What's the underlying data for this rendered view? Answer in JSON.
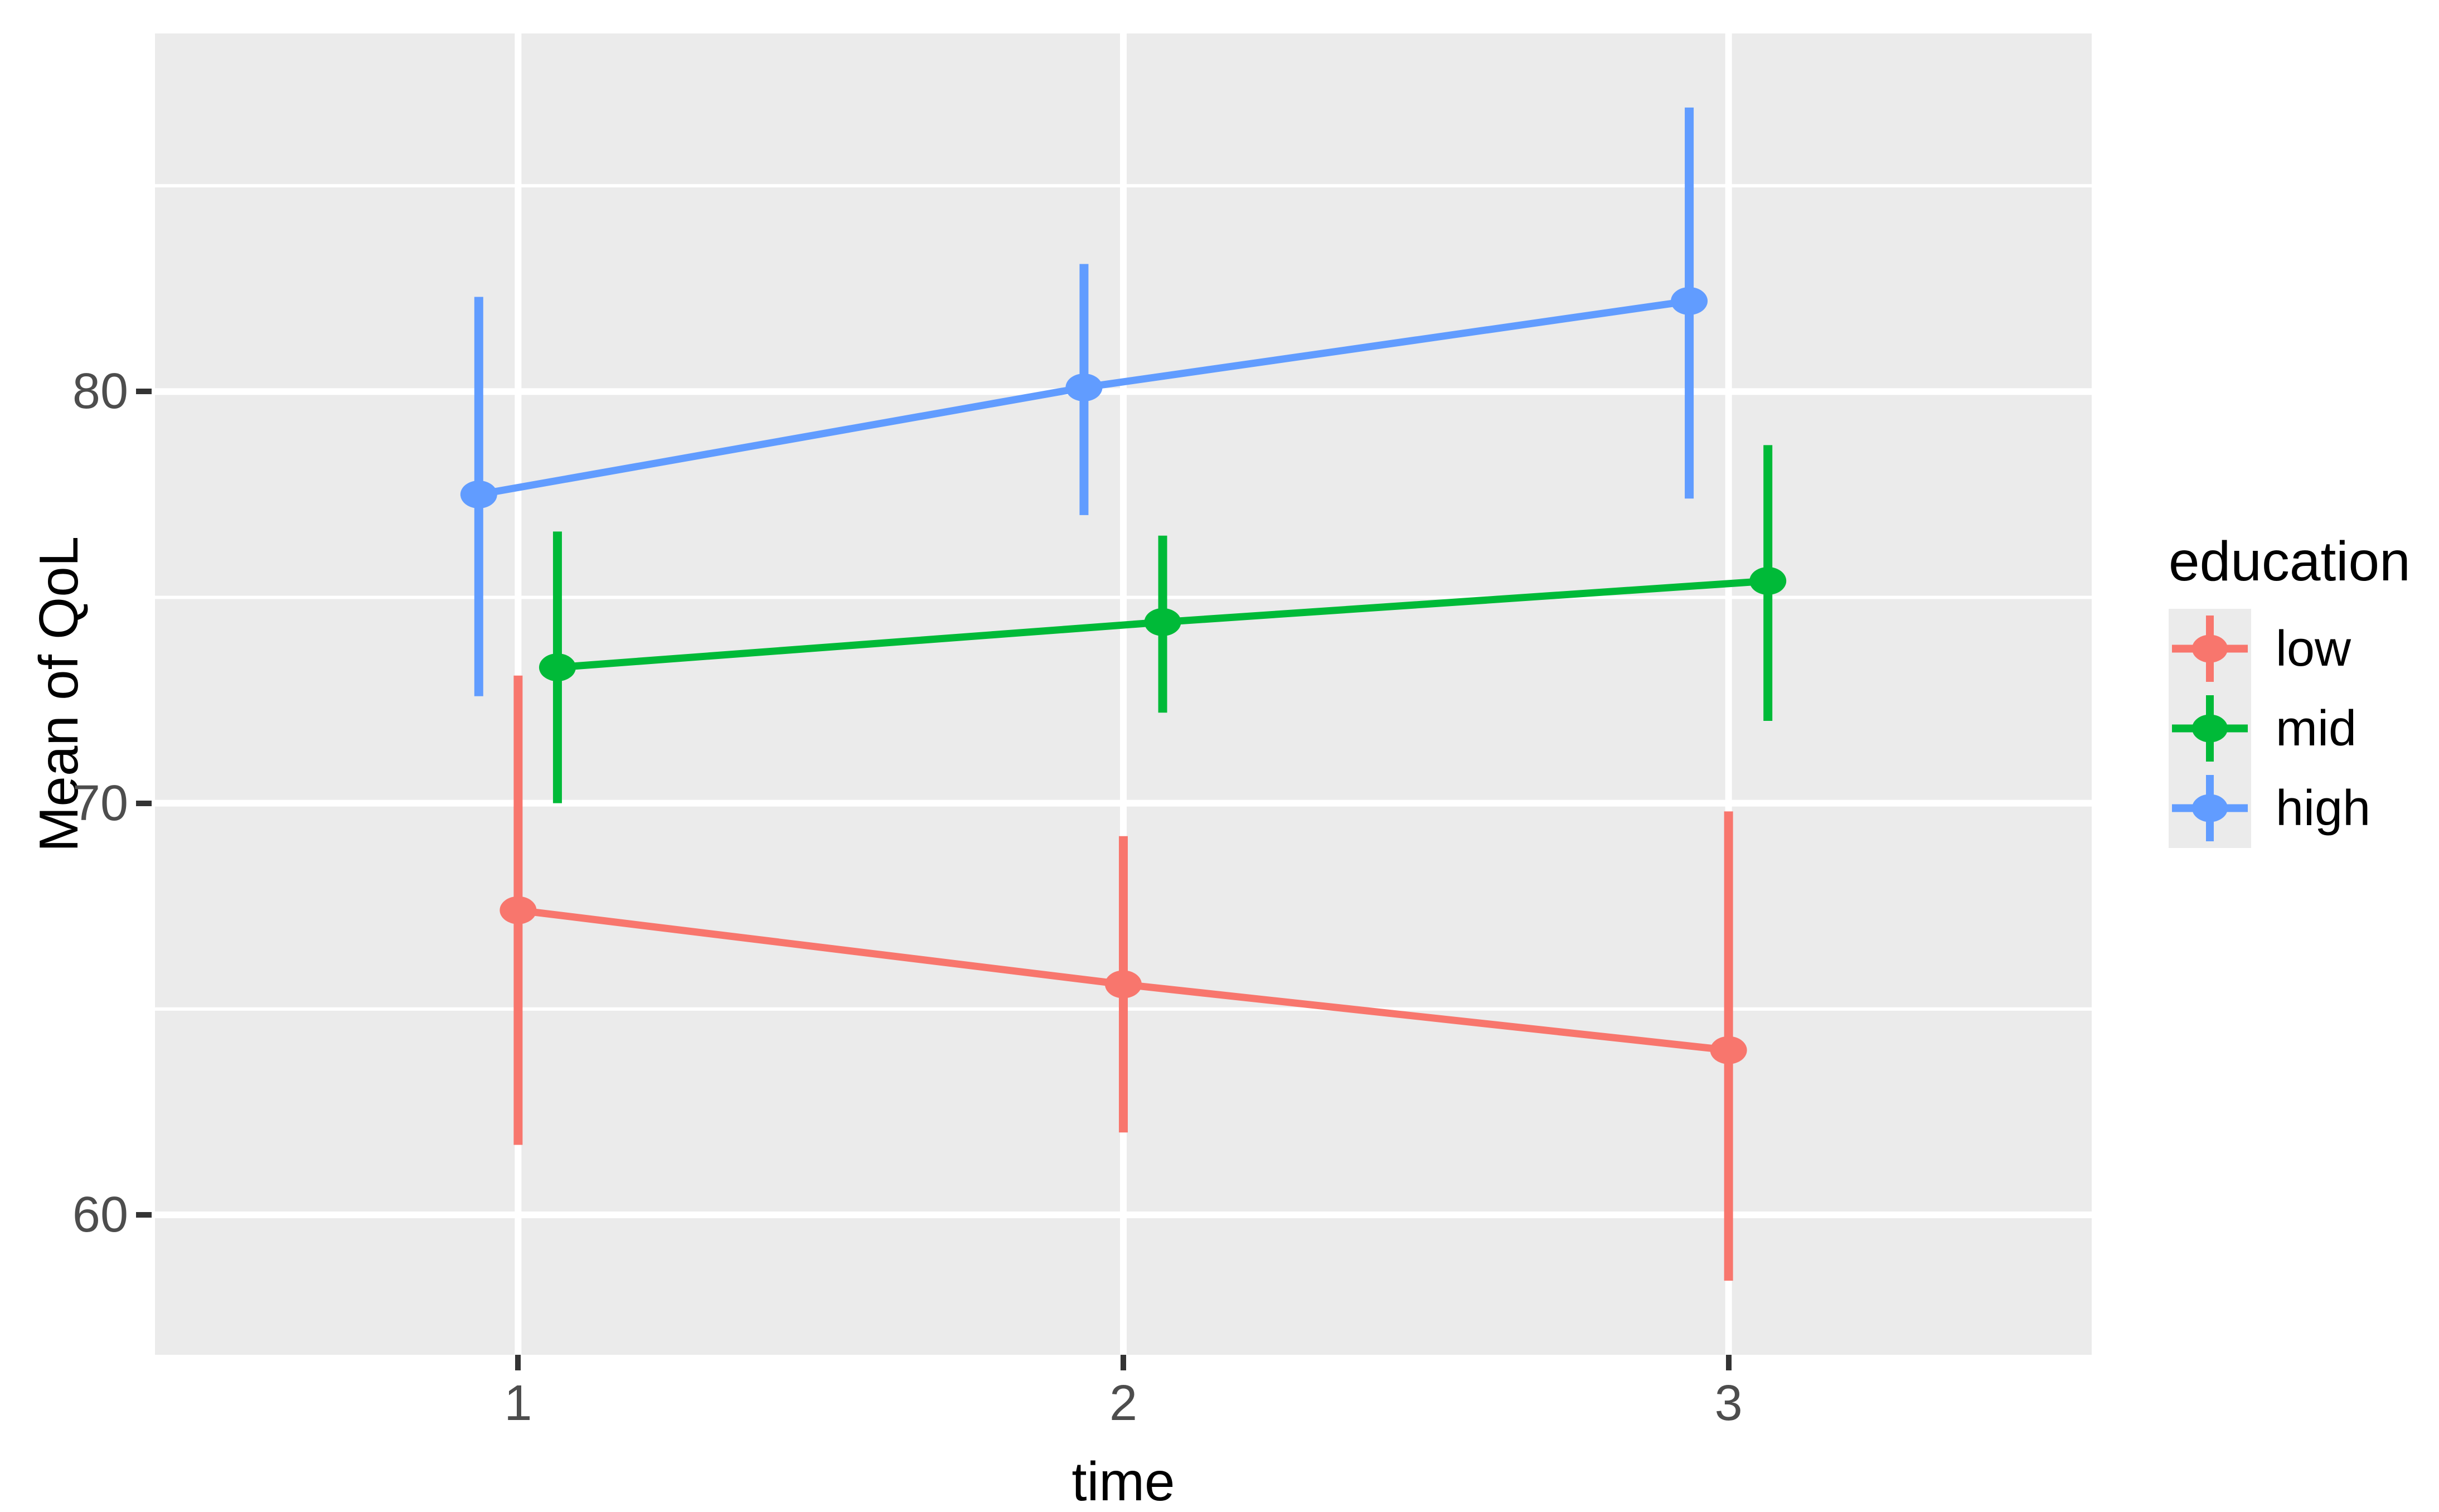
{
  "chart_data": {
    "type": "line",
    "title": "",
    "xlabel": "time",
    "ylabel": "Mean of QoL",
    "x": [
      1,
      2,
      3
    ],
    "series": [
      {
        "name": "low",
        "color": "#F8766D",
        "values": [
          67.4,
          65.6,
          64.0
        ],
        "ci_low": [
          61.7,
          62.0,
          58.4
        ],
        "ci_high": [
          73.1,
          69.2,
          69.8
        ],
        "dodge": 0
      },
      {
        "name": "mid",
        "color": "#00BA38",
        "values": [
          73.3,
          74.4,
          75.4
        ],
        "ci_low": [
          70.0,
          72.2,
          72.0
        ],
        "ci_high": [
          76.6,
          76.5,
          78.7
        ],
        "dodge": 0.065
      },
      {
        "name": "high",
        "color": "#619CFF",
        "values": [
          77.5,
          80.1,
          82.2
        ],
        "ci_low": [
          72.6,
          77.0,
          77.4
        ],
        "ci_high": [
          82.3,
          83.1,
          86.9
        ],
        "dodge": -0.065
      }
    ],
    "legend": {
      "title": "education",
      "position": "right",
      "entries": [
        "low",
        "mid",
        "high"
      ]
    },
    "axes": {
      "x_ticks": [
        "1",
        "2",
        "3"
      ],
      "x_tick_values": [
        1,
        2,
        3
      ],
      "y_ticks": [
        "60",
        "70",
        "80"
      ],
      "y_tick_values": [
        60,
        70,
        80
      ],
      "y_minor_tick_values": [
        65,
        75,
        85
      ],
      "x_domain": [
        0.4,
        3.6
      ],
      "y_domain": [
        56.6,
        88.7
      ],
      "grid": "major and minor, white on gray panel"
    },
    "style": {
      "panel_bg": "#EBEBEB",
      "grid_color": "#FFFFFF",
      "tick_label_color": "#4D4D4D",
      "axis_title_color": "#000000",
      "marker": "point with vertical error bar, no caps"
    }
  }
}
